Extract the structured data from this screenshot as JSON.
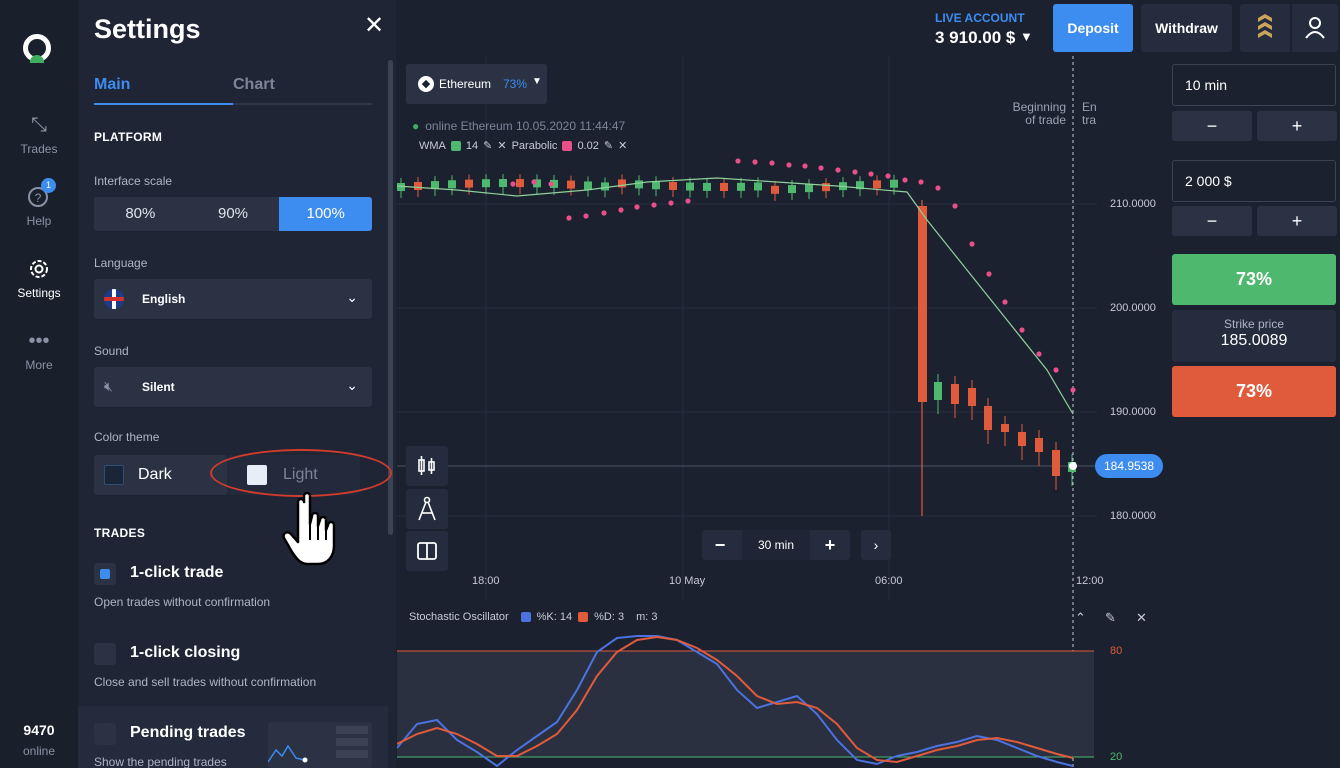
{
  "nav": {
    "trades_label": "Trades",
    "help_label": "Help",
    "help_badge": "1",
    "settings_label": "Settings",
    "more_label": "More",
    "online_count": "9470",
    "online_label": "online"
  },
  "settings": {
    "title": "Settings",
    "tabs": [
      "Main",
      "Chart"
    ],
    "platform_head": "PLATFORM",
    "scale_label": "Interface scale",
    "scale_options": [
      "80%",
      "90%",
      "100%"
    ],
    "scale_selected": "100%",
    "language_label": "Language",
    "language_value": "English",
    "sound_label": "Sound",
    "sound_value": "Silent",
    "theme_label": "Color theme",
    "theme_dark": "Dark",
    "theme_light": "Light",
    "trades_head": "TRADES",
    "one_click_trade": "1-click trade",
    "one_click_trade_desc": "Open trades without confirmation",
    "one_click_closing": "1-click closing",
    "one_click_closing_desc": "Close and sell trades without confirmation",
    "pending_trades": "Pending trades",
    "pending_trades_desc": "Show the pending trades"
  },
  "chart": {
    "asset": "Ethereum",
    "asset_payout": "73%",
    "online_text": "online Ethereum  10.05.2020 11:44:47",
    "wma_label": "WMA",
    "wma_value": "14",
    "parabolic_label": "Parabolic",
    "parabolic_value": "0.02",
    "begin_label_1": "Beginning",
    "begin_label_2": "of trade",
    "end_label_1": "En",
    "end_label_2": "tra",
    "price_ticks": [
      "210.0000",
      "200.0000",
      "190.0000",
      "180.0000"
    ],
    "current_price": "184.9538",
    "time_ticks": [
      "18:00",
      "10 May",
      "06:00",
      "12:00"
    ],
    "zoom_value": "30 min",
    "osc_name": "Stochastic Oscillator",
    "osc_k": "%K:  14",
    "osc_d": "%D:  3",
    "osc_m": "m:  3",
    "osc_upper": "80",
    "osc_lower": "20",
    "colors": {
      "up": "#4eb96e",
      "down": "#e05a3c",
      "accent": "#3d8cf0",
      "parabolic": "#e8508a"
    }
  },
  "account": {
    "type": "LIVE ACCOUNT",
    "balance": "3 910.00 $",
    "deposit": "Deposit",
    "withdraw": "Withdraw"
  },
  "trade": {
    "duration": "10 min",
    "amount": "2 000  $",
    "up_payout": "73%",
    "strike_label": "Strike price",
    "strike_value": "185.0089",
    "down_payout": "73%"
  }
}
